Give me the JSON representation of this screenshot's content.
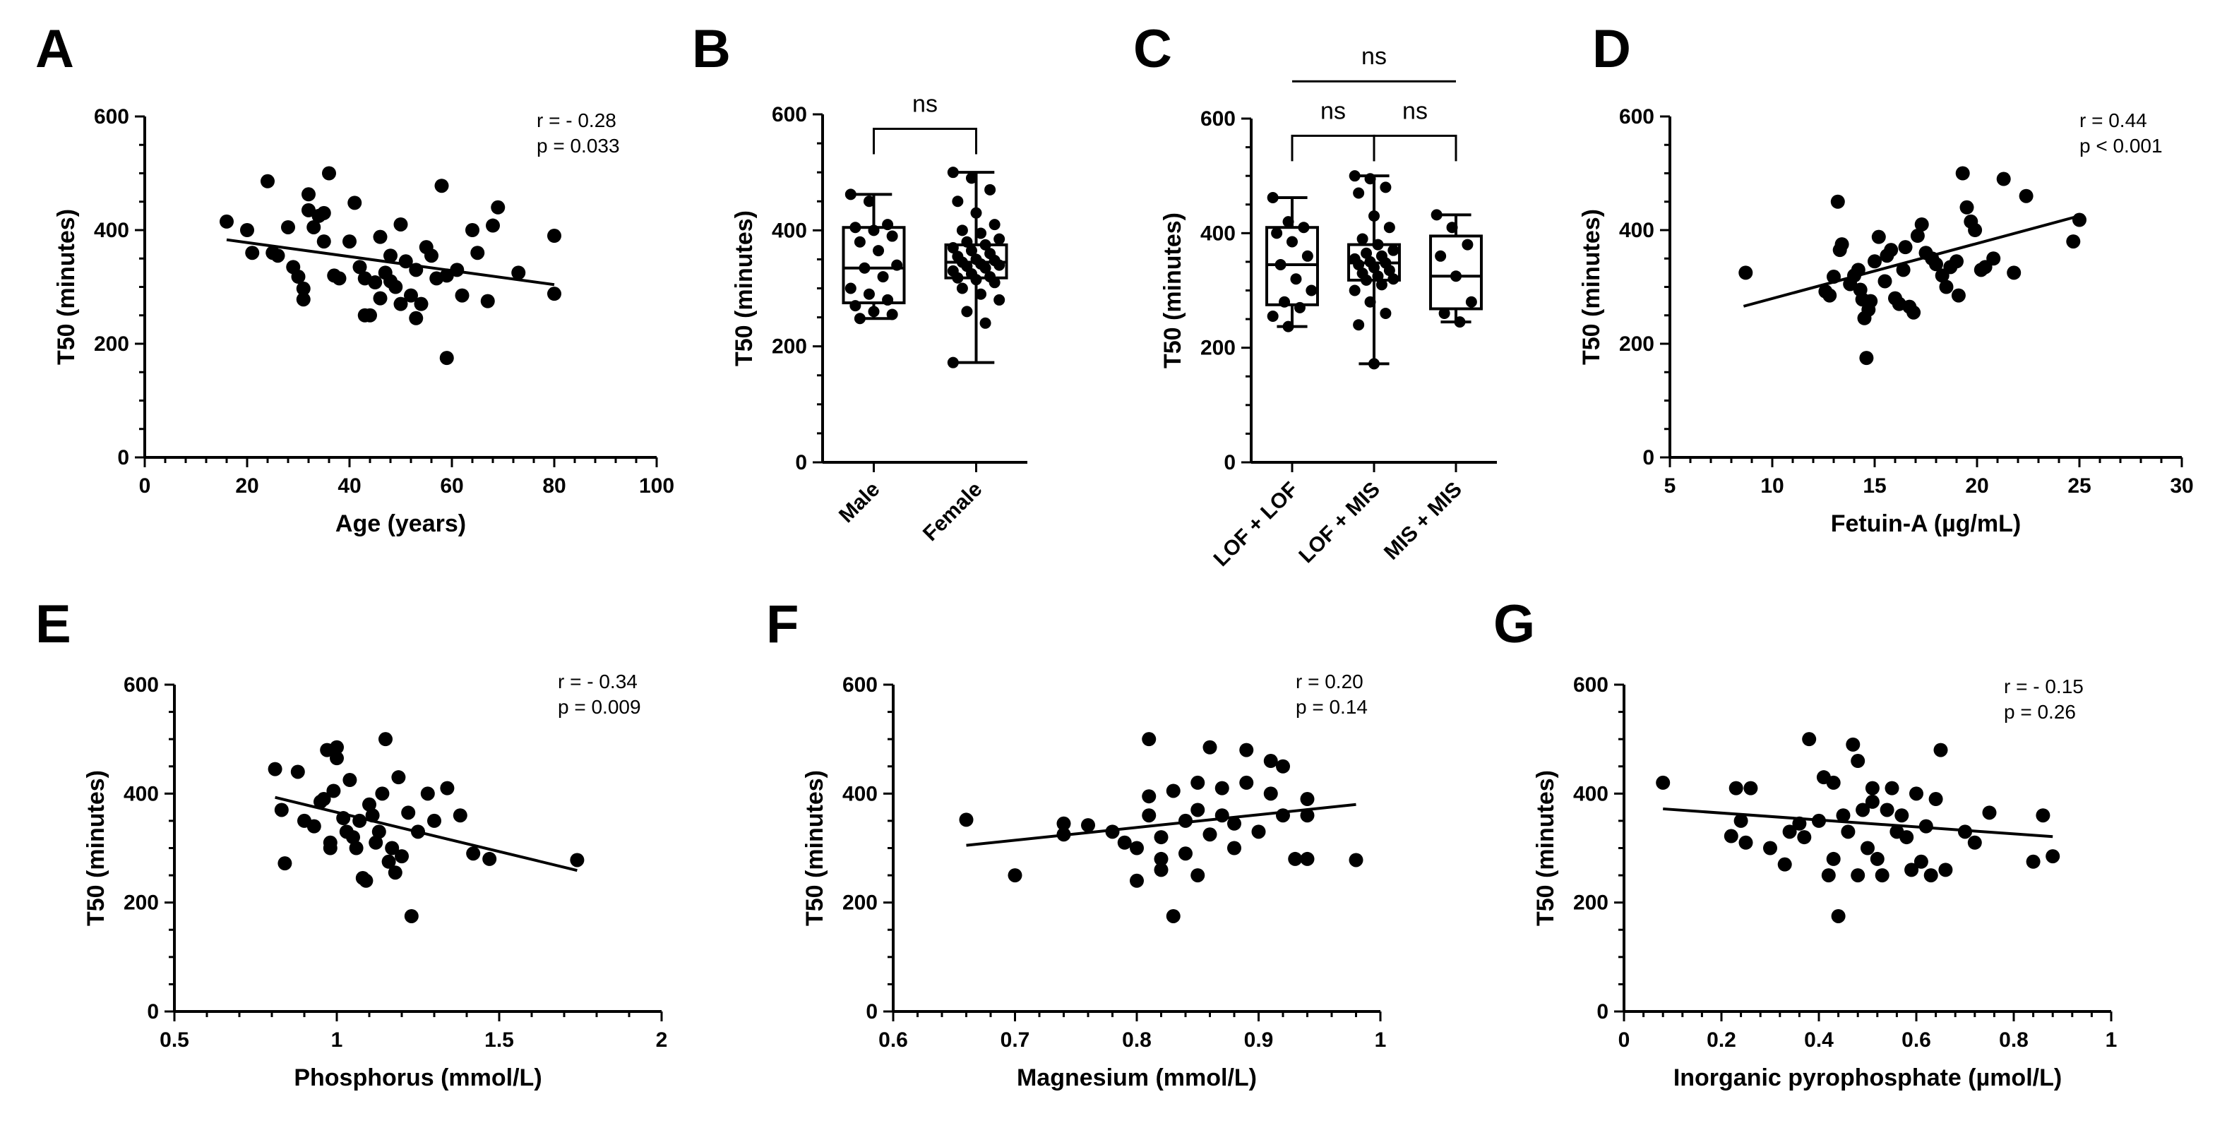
{
  "figure": {
    "colors": {
      "ink": "#000000",
      "background": "#ffffff"
    }
  },
  "chart_data": [
    {
      "id": "A",
      "letter": "A",
      "type": "scatter",
      "xlabel": "Age (years)",
      "ylabel": "T50 (minutes)",
      "xlim": [
        0,
        100
      ],
      "ylim": [
        0,
        600
      ],
      "xticks": [
        0,
        20,
        40,
        60,
        80,
        100
      ],
      "yticks": [
        0,
        200,
        400,
        600
      ],
      "stat_lines": [
        "r = - 0.28",
        "p = 0.033"
      ],
      "fit": {
        "x": [
          16,
          80
        ],
        "y": [
          383,
          304
        ]
      },
      "points": [
        [
          16,
          415
        ],
        [
          20,
          400
        ],
        [
          21,
          360
        ],
        [
          24,
          486
        ],
        [
          25,
          360
        ],
        [
          26,
          355
        ],
        [
          28,
          405
        ],
        [
          29,
          335
        ],
        [
          30,
          318
        ],
        [
          31,
          278
        ],
        [
          31,
          297
        ],
        [
          32,
          463
        ],
        [
          32,
          435
        ],
        [
          33,
          405
        ],
        [
          34,
          425
        ],
        [
          35,
          430
        ],
        [
          35,
          380
        ],
        [
          36,
          500
        ],
        [
          37,
          320
        ],
        [
          38,
          315
        ],
        [
          40,
          380
        ],
        [
          41,
          448
        ],
        [
          42,
          335
        ],
        [
          43,
          315
        ],
        [
          43,
          250
        ],
        [
          44,
          250
        ],
        [
          45,
          308
        ],
        [
          46,
          388
        ],
        [
          46,
          280
        ],
        [
          47,
          325
        ],
        [
          48,
          355
        ],
        [
          48,
          310
        ],
        [
          49,
          300
        ],
        [
          50,
          410
        ],
        [
          50,
          270
        ],
        [
          51,
          345
        ],
        [
          52,
          285
        ],
        [
          53,
          245
        ],
        [
          53,
          330
        ],
        [
          54,
          270
        ],
        [
          55,
          370
        ],
        [
          56,
          355
        ],
        [
          57,
          315
        ],
        [
          58,
          478
        ],
        [
          59,
          320
        ],
        [
          59,
          175
        ],
        [
          61,
          330
        ],
        [
          62,
          285
        ],
        [
          64,
          400
        ],
        [
          65,
          360
        ],
        [
          67,
          275
        ],
        [
          68,
          408
        ],
        [
          69,
          440
        ],
        [
          73,
          325
        ],
        [
          80,
          390
        ],
        [
          80,
          288
        ]
      ]
    },
    {
      "id": "B",
      "letter": "B",
      "type": "box",
      "ylabel": "T50 (minutes)",
      "ylim": [
        0,
        600
      ],
      "yticks": [
        0,
        200,
        400,
        600
      ],
      "categories": [
        "Male",
        "Female"
      ],
      "boxes": [
        {
          "min": 248,
          "q1": 275,
          "median": 335,
          "q3": 405,
          "max": 462,
          "points": [
            462,
            450,
            410,
            405,
            400,
            390,
            380,
            365,
            340,
            335,
            320,
            300,
            290,
            280,
            270,
            260,
            255,
            248
          ]
        },
        {
          "min": 172,
          "q1": 318,
          "median": 345,
          "q3": 375,
          "max": 500,
          "points": [
            500,
            490,
            470,
            450,
            430,
            410,
            400,
            395,
            385,
            380,
            375,
            370,
            365,
            360,
            355,
            350,
            348,
            345,
            342,
            340,
            338,
            335,
            330,
            325,
            320,
            318,
            315,
            310,
            300,
            290,
            280,
            260,
            240,
            172
          ]
        }
      ],
      "significance": [
        {
          "from": 0,
          "to": 1,
          "label": "ns",
          "y": 575
        }
      ]
    },
    {
      "id": "C",
      "letter": "C",
      "type": "box",
      "ylabel": "T50 (minutes)",
      "ylim": [
        0,
        600
      ],
      "yticks": [
        0,
        200,
        400,
        600
      ],
      "categories": [
        "LOF + LOF",
        "LOF + MIS",
        "MIS + MIS"
      ],
      "boxes": [
        {
          "min": 237,
          "q1": 275,
          "median": 345,
          "q3": 410,
          "max": 462,
          "points": [
            462,
            420,
            410,
            400,
            385,
            360,
            345,
            320,
            300,
            280,
            270,
            255,
            237
          ]
        },
        {
          "min": 172,
          "q1": 318,
          "median": 348,
          "q3": 380,
          "max": 500,
          "points": [
            500,
            495,
            480,
            470,
            430,
            410,
            390,
            380,
            370,
            365,
            360,
            355,
            350,
            348,
            345,
            340,
            335,
            330,
            325,
            320,
            318,
            310,
            300,
            280,
            260,
            240,
            172
          ]
        },
        {
          "min": 245,
          "q1": 268,
          "median": 325,
          "q3": 395,
          "max": 432,
          "points": [
            432,
            410,
            380,
            360,
            325,
            280,
            260,
            245
          ]
        }
      ],
      "significance": [
        {
          "from": 0,
          "to": 1,
          "label": "ns",
          "y": 570
        },
        {
          "from": 1,
          "to": 2,
          "label": "ns",
          "y": 570
        },
        {
          "from": 0,
          "to": 2,
          "label": "ns",
          "y": 665
        }
      ]
    },
    {
      "id": "D",
      "letter": "D",
      "type": "scatter",
      "xlabel": "Fetuin-A (µg/mL)",
      "ylabel": "T50 (minutes)",
      "xlim": [
        5,
        30
      ],
      "ylim": [
        0,
        600
      ],
      "xticks": [
        5,
        10,
        15,
        20,
        25,
        30
      ],
      "yticks": [
        0,
        200,
        400,
        600
      ],
      "stat_lines": [
        "r = 0.44",
        "p < 0.001"
      ],
      "fit": {
        "x": [
          8.6,
          25
        ],
        "y": [
          266,
          425
        ]
      },
      "points": [
        [
          8.7,
          325
        ],
        [
          12.6,
          292
        ],
        [
          12.8,
          285
        ],
        [
          13.0,
          318
        ],
        [
          13.2,
          450
        ],
        [
          13.3,
          365
        ],
        [
          13.4,
          375
        ],
        [
          13.8,
          305
        ],
        [
          14.0,
          320
        ],
        [
          14.2,
          330
        ],
        [
          14.3,
          295
        ],
        [
          14.4,
          278
        ],
        [
          14.5,
          245
        ],
        [
          14.6,
          175
        ],
        [
          14.7,
          260
        ],
        [
          14.8,
          275
        ],
        [
          15.0,
          345
        ],
        [
          15.2,
          388
        ],
        [
          15.5,
          310
        ],
        [
          15.6,
          355
        ],
        [
          15.8,
          365
        ],
        [
          16.0,
          280
        ],
        [
          16.2,
          270
        ],
        [
          16.4,
          330
        ],
        [
          16.5,
          370
        ],
        [
          16.7,
          265
        ],
        [
          16.9,
          255
        ],
        [
          17.1,
          390
        ],
        [
          17.3,
          410
        ],
        [
          17.5,
          360
        ],
        [
          17.8,
          350
        ],
        [
          18.0,
          340
        ],
        [
          18.3,
          320
        ],
        [
          18.5,
          300
        ],
        [
          18.7,
          335
        ],
        [
          19.0,
          345
        ],
        [
          19.1,
          285
        ],
        [
          19.3,
          500
        ],
        [
          19.5,
          440
        ],
        [
          19.7,
          415
        ],
        [
          19.9,
          400
        ],
        [
          20.2,
          330
        ],
        [
          20.4,
          335
        ],
        [
          20.8,
          350
        ],
        [
          21.3,
          490
        ],
        [
          21.8,
          325
        ],
        [
          22.4,
          460
        ],
        [
          24.7,
          380
        ],
        [
          25.0,
          418
        ]
      ]
    },
    {
      "id": "E",
      "letter": "E",
      "type": "scatter",
      "xlabel": "Phosphorus (mmol/L)",
      "ylabel": "T50 (minutes)",
      "xlim": [
        0.5,
        2.0
      ],
      "ylim": [
        0,
        600
      ],
      "xticks": [
        0.5,
        1.0,
        1.5,
        2.0
      ],
      "yticks": [
        0,
        200,
        400,
        600
      ],
      "stat_lines": [
        "r = - 0.34",
        "p = 0.009"
      ],
      "fit": {
        "x": [
          0.81,
          1.74
        ],
        "y": [
          393,
          259
        ]
      },
      "points": [
        [
          0.81,
          445
        ],
        [
          0.83,
          370
        ],
        [
          0.84,
          272
        ],
        [
          0.88,
          440
        ],
        [
          0.9,
          350
        ],
        [
          0.93,
          340
        ],
        [
          0.95,
          385
        ],
        [
          0.96,
          390
        ],
        [
          0.97,
          480
        ],
        [
          0.98,
          310
        ],
        [
          0.98,
          300
        ],
        [
          0.99,
          405
        ],
        [
          1.0,
          485
        ],
        [
          1.0,
          465
        ],
        [
          1.02,
          355
        ],
        [
          1.03,
          330
        ],
        [
          1.04,
          425
        ],
        [
          1.05,
          320
        ],
        [
          1.06,
          300
        ],
        [
          1.07,
          350
        ],
        [
          1.08,
          245
        ],
        [
          1.09,
          240
        ],
        [
          1.1,
          380
        ],
        [
          1.11,
          360
        ],
        [
          1.12,
          310
        ],
        [
          1.13,
          330
        ],
        [
          1.14,
          400
        ],
        [
          1.15,
          500
        ],
        [
          1.16,
          275
        ],
        [
          1.17,
          300
        ],
        [
          1.18,
          255
        ],
        [
          1.19,
          430
        ],
        [
          1.2,
          285
        ],
        [
          1.22,
          365
        ],
        [
          1.23,
          175
        ],
        [
          1.25,
          330
        ],
        [
          1.28,
          400
        ],
        [
          1.3,
          350
        ],
        [
          1.34,
          410
        ],
        [
          1.38,
          360
        ],
        [
          1.42,
          290
        ],
        [
          1.47,
          280
        ],
        [
          1.74,
          278
        ]
      ]
    },
    {
      "id": "F",
      "letter": "F",
      "type": "scatter",
      "xlabel": "Magnesium (mmol/L)",
      "ylabel": "T50 (minutes)",
      "xlim": [
        0.6,
        1.0
      ],
      "ylim": [
        0,
        600
      ],
      "xticks": [
        0.6,
        0.7,
        0.8,
        0.9,
        1.0
      ],
      "yticks": [
        0,
        200,
        400,
        600
      ],
      "stat_lines": [
        "r = 0.20",
        "p = 0.14"
      ],
      "fit": {
        "x": [
          0.66,
          0.98
        ],
        "y": [
          305,
          380
        ]
      },
      "points": [
        [
          0.66,
          352
        ],
        [
          0.7,
          250
        ],
        [
          0.74,
          345
        ],
        [
          0.74,
          325
        ],
        [
          0.76,
          342
        ],
        [
          0.78,
          330
        ],
        [
          0.79,
          310
        ],
        [
          0.8,
          240
        ],
        [
          0.8,
          300
        ],
        [
          0.81,
          500
        ],
        [
          0.81,
          395
        ],
        [
          0.81,
          360
        ],
        [
          0.82,
          320
        ],
        [
          0.82,
          280
        ],
        [
          0.82,
          260
        ],
        [
          0.83,
          175
        ],
        [
          0.83,
          405
        ],
        [
          0.84,
          350
        ],
        [
          0.84,
          290
        ],
        [
          0.85,
          420
        ],
        [
          0.85,
          370
        ],
        [
          0.85,
          250
        ],
        [
          0.86,
          325
        ],
        [
          0.86,
          485
        ],
        [
          0.87,
          410
        ],
        [
          0.87,
          360
        ],
        [
          0.88,
          300
        ],
        [
          0.88,
          345
        ],
        [
          0.89,
          480
        ],
        [
          0.89,
          420
        ],
        [
          0.9,
          330
        ],
        [
          0.91,
          400
        ],
        [
          0.91,
          460
        ],
        [
          0.92,
          450
        ],
        [
          0.92,
          360
        ],
        [
          0.93,
          280
        ],
        [
          0.94,
          280
        ],
        [
          0.94,
          390
        ],
        [
          0.94,
          360
        ],
        [
          0.98,
          278
        ]
      ]
    },
    {
      "id": "G",
      "letter": "G",
      "type": "scatter",
      "xlabel": "Inorganic pyrophosphate (µmol/L)",
      "ylabel": "T50 (minutes)",
      "xlim": [
        0.0,
        1.0
      ],
      "ylim": [
        0,
        600
      ],
      "xticks": [
        0.0,
        0.2,
        0.4,
        0.6,
        0.8,
        1.0
      ],
      "yticks": [
        0,
        200,
        400,
        600
      ],
      "stat_lines": [
        "r = - 0.15",
        "p = 0.26"
      ],
      "fit": {
        "x": [
          0.08,
          0.88
        ],
        "y": [
          372,
          321
        ]
      },
      "points": [
        [
          0.08,
          420
        ],
        [
          0.22,
          322
        ],
        [
          0.23,
          410
        ],
        [
          0.24,
          350
        ],
        [
          0.25,
          310
        ],
        [
          0.26,
          410
        ],
        [
          0.3,
          300
        ],
        [
          0.33,
          270
        ],
        [
          0.34,
          330
        ],
        [
          0.36,
          345
        ],
        [
          0.37,
          320
        ],
        [
          0.38,
          500
        ],
        [
          0.4,
          350
        ],
        [
          0.41,
          430
        ],
        [
          0.42,
          250
        ],
        [
          0.43,
          280
        ],
        [
          0.43,
          420
        ],
        [
          0.44,
          175
        ],
        [
          0.45,
          360
        ],
        [
          0.46,
          330
        ],
        [
          0.47,
          490
        ],
        [
          0.48,
          250
        ],
        [
          0.48,
          460
        ],
        [
          0.49,
          370
        ],
        [
          0.5,
          300
        ],
        [
          0.51,
          385
        ],
        [
          0.51,
          410
        ],
        [
          0.52,
          280
        ],
        [
          0.53,
          250
        ],
        [
          0.54,
          370
        ],
        [
          0.55,
          410
        ],
        [
          0.56,
          330
        ],
        [
          0.57,
          360
        ],
        [
          0.58,
          320
        ],
        [
          0.59,
          260
        ],
        [
          0.6,
          400
        ],
        [
          0.61,
          275
        ],
        [
          0.62,
          340
        ],
        [
          0.63,
          250
        ],
        [
          0.64,
          390
        ],
        [
          0.65,
          480
        ],
        [
          0.66,
          260
        ],
        [
          0.7,
          330
        ],
        [
          0.72,
          310
        ],
        [
          0.75,
          365
        ],
        [
          0.84,
          275
        ],
        [
          0.86,
          360
        ],
        [
          0.88,
          285
        ]
      ]
    }
  ]
}
